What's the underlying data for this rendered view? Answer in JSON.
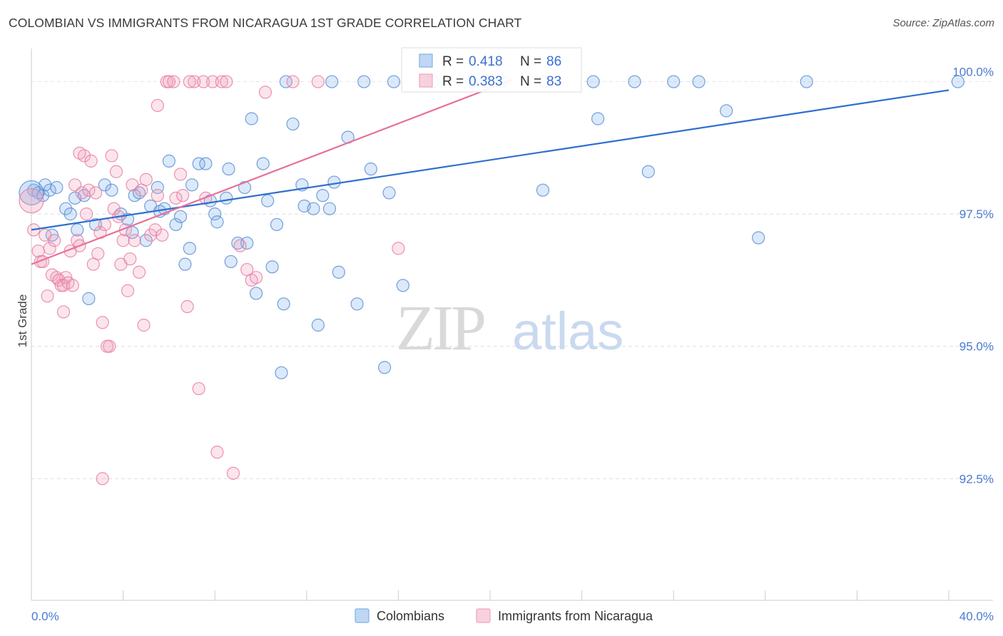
{
  "chart_data": {
    "type": "scatter",
    "title": "COLOMBIAN VS IMMIGRANTS FROM NICARAGUA 1ST GRADE CORRELATION CHART",
    "source": "Source: ZipAtlas.com",
    "ylabel": "1st Grade",
    "xlabel": "",
    "xlim": [
      0,
      40
    ],
    "ylim": [
      90.2,
      100.6
    ],
    "x_tick_labels": [
      "0.0%",
      "40.0%"
    ],
    "y_ticks": [
      92.5,
      95.0,
      97.5,
      100.0
    ],
    "y_tick_labels": [
      "92.5%",
      "95.0%",
      "97.5%",
      "100.0%"
    ],
    "grid": true,
    "watermark": "ZIPatlas",
    "legend": [
      {
        "name": "Colombians",
        "r_label": "R =",
        "r_value": "0.418",
        "n_label": "N =",
        "n_value": "86",
        "color": "#7fb0ea"
      },
      {
        "name": "Immigrants from Nicaragua",
        "r_label": "R =",
        "r_value": "0.383",
        "n_label": "N =",
        "n_value": "83",
        "color": "#f1a3bd"
      }
    ],
    "series": [
      {
        "name": "Colombians",
        "color": "#7fb0ea",
        "stroke": "#5b8fd6",
        "trend": {
          "x": [
            0,
            40
          ],
          "y": [
            97.2,
            99.84
          ],
          "color": "#2f6fce"
        },
        "points": [
          [
            0.1,
            97.95
          ],
          [
            0.3,
            97.9
          ],
          [
            0.5,
            97.85
          ],
          [
            0.6,
            98.05
          ],
          [
            0.8,
            97.95
          ],
          [
            1.1,
            98.0
          ],
          [
            0.9,
            97.1
          ],
          [
            1.5,
            97.6
          ],
          [
            1.7,
            97.5
          ],
          [
            1.9,
            97.8
          ],
          [
            2.0,
            97.2
          ],
          [
            2.3,
            97.85
          ],
          [
            2.5,
            95.9
          ],
          [
            2.8,
            97.3
          ],
          [
            3.2,
            98.05
          ],
          [
            3.5,
            97.95
          ],
          [
            3.9,
            97.5
          ],
          [
            4.2,
            97.4
          ],
          [
            4.4,
            97.15
          ],
          [
            4.5,
            97.85
          ],
          [
            4.7,
            97.9
          ],
          [
            5.0,
            97.0
          ],
          [
            5.2,
            97.65
          ],
          [
            5.5,
            98.0
          ],
          [
            5.6,
            97.55
          ],
          [
            5.8,
            97.6
          ],
          [
            6.0,
            98.5
          ],
          [
            6.3,
            97.3
          ],
          [
            6.5,
            97.45
          ],
          [
            6.7,
            96.55
          ],
          [
            6.9,
            96.85
          ],
          [
            7.0,
            98.05
          ],
          [
            7.3,
            98.45
          ],
          [
            7.6,
            98.45
          ],
          [
            7.8,
            97.75
          ],
          [
            8.0,
            97.5
          ],
          [
            8.1,
            97.35
          ],
          [
            8.5,
            97.8
          ],
          [
            8.6,
            98.35
          ],
          [
            8.7,
            96.6
          ],
          [
            9.0,
            96.95
          ],
          [
            9.3,
            98.0
          ],
          [
            9.4,
            96.95
          ],
          [
            9.6,
            99.3
          ],
          [
            9.8,
            96.0
          ],
          [
            10.1,
            98.45
          ],
          [
            10.3,
            97.75
          ],
          [
            10.5,
            96.5
          ],
          [
            10.7,
            97.3
          ],
          [
            10.9,
            94.5
          ],
          [
            11.0,
            95.8
          ],
          [
            11.4,
            99.2
          ],
          [
            11.8,
            98.05
          ],
          [
            11.9,
            97.65
          ],
          [
            12.3,
            97.6
          ],
          [
            12.5,
            95.4
          ],
          [
            12.7,
            97.85
          ],
          [
            13.0,
            97.6
          ],
          [
            13.2,
            98.1
          ],
          [
            13.4,
            96.4
          ],
          [
            13.8,
            98.95
          ],
          [
            14.2,
            95.8
          ],
          [
            14.8,
            98.35
          ],
          [
            15.4,
            94.6
          ],
          [
            15.6,
            97.9
          ],
          [
            16.2,
            96.15
          ],
          [
            11.1,
            100.0
          ],
          [
            13.1,
            100.0
          ],
          [
            14.5,
            100.0
          ],
          [
            15.8,
            100.0
          ],
          [
            17.5,
            100.0
          ],
          [
            19.2,
            100.0
          ],
          [
            20.5,
            100.0
          ],
          [
            22.4,
            100.0
          ],
          [
            24.5,
            100.0
          ],
          [
            26.3,
            100.0
          ],
          [
            28.0,
            100.0
          ],
          [
            29.1,
            100.0
          ],
          [
            33.8,
            100.0
          ],
          [
            40.4,
            100.0
          ],
          [
            22.3,
            97.95
          ],
          [
            24.7,
            99.3
          ],
          [
            26.9,
            98.3
          ],
          [
            30.3,
            99.45
          ],
          [
            31.7,
            97.05
          ],
          [
            0.0,
            97.9
          ]
        ]
      },
      {
        "name": "Immigrants from Nicaragua",
        "color": "#f1a3bd",
        "stroke": "#e77fa2",
        "trend": {
          "x": [
            0,
            21
          ],
          "y": [
            96.55,
            100.04
          ],
          "color": "#e8709a"
        },
        "points": [
          [
            0.1,
            97.2
          ],
          [
            0.3,
            96.8
          ],
          [
            0.4,
            96.6
          ],
          [
            0.6,
            97.1
          ],
          [
            0.7,
            95.95
          ],
          [
            0.8,
            96.85
          ],
          [
            0.9,
            96.35
          ],
          [
            1.0,
            97.0
          ],
          [
            1.1,
            96.3
          ],
          [
            1.2,
            96.25
          ],
          [
            1.3,
            96.15
          ],
          [
            1.4,
            95.65
          ],
          [
            1.5,
            96.3
          ],
          [
            1.6,
            96.2
          ],
          [
            1.7,
            96.8
          ],
          [
            1.8,
            96.15
          ],
          [
            1.9,
            98.05
          ],
          [
            2.0,
            97.0
          ],
          [
            2.1,
            96.9
          ],
          [
            2.2,
            97.9
          ],
          [
            2.3,
            98.6
          ],
          [
            2.4,
            97.5
          ],
          [
            2.5,
            97.95
          ],
          [
            2.6,
            98.5
          ],
          [
            2.7,
            96.55
          ],
          [
            2.8,
            97.9
          ],
          [
            2.9,
            96.75
          ],
          [
            3.0,
            97.15
          ],
          [
            3.1,
            95.45
          ],
          [
            3.2,
            97.3
          ],
          [
            3.4,
            95.0
          ],
          [
            3.5,
            98.6
          ],
          [
            3.6,
            97.6
          ],
          [
            3.7,
            98.3
          ],
          [
            3.8,
            97.45
          ],
          [
            3.9,
            96.55
          ],
          [
            4.0,
            97.0
          ],
          [
            4.1,
            97.2
          ],
          [
            4.2,
            96.05
          ],
          [
            4.3,
            96.65
          ],
          [
            4.5,
            97.0
          ],
          [
            4.7,
            96.4
          ],
          [
            4.8,
            97.95
          ],
          [
            4.9,
            95.4
          ],
          [
            5.0,
            98.15
          ],
          [
            5.2,
            97.1
          ],
          [
            5.4,
            97.2
          ],
          [
            5.5,
            99.55
          ],
          [
            5.7,
            97.1
          ],
          [
            5.9,
            100.0
          ],
          [
            6.2,
            100.0
          ],
          [
            6.3,
            97.8
          ],
          [
            6.5,
            98.25
          ],
          [
            6.6,
            97.85
          ],
          [
            6.8,
            95.75
          ],
          [
            7.1,
            100.0
          ],
          [
            7.3,
            94.2
          ],
          [
            7.6,
            97.8
          ],
          [
            7.9,
            100.0
          ],
          [
            8.1,
            93.0
          ],
          [
            8.3,
            100.0
          ],
          [
            8.5,
            100.0
          ],
          [
            8.8,
            92.6
          ],
          [
            9.1,
            96.9
          ],
          [
            9.4,
            96.45
          ],
          [
            9.6,
            96.25
          ],
          [
            9.8,
            96.3
          ],
          [
            10.2,
            99.8
          ],
          [
            11.4,
            100.0
          ],
          [
            12.5,
            100.0
          ],
          [
            3.1,
            92.5
          ],
          [
            5.5,
            97.85
          ],
          [
            6.0,
            100.0
          ],
          [
            7.5,
            100.0
          ],
          [
            16.0,
            96.85
          ],
          [
            2.1,
            98.65
          ],
          [
            1.4,
            96.15
          ],
          [
            3.3,
            95.0
          ],
          [
            0.5,
            96.6
          ],
          [
            4.4,
            98.05
          ],
          [
            6.9,
            100.0
          ],
          [
            19.8,
            100.0
          ],
          [
            0.0,
            97.75
          ]
        ]
      }
    ]
  }
}
